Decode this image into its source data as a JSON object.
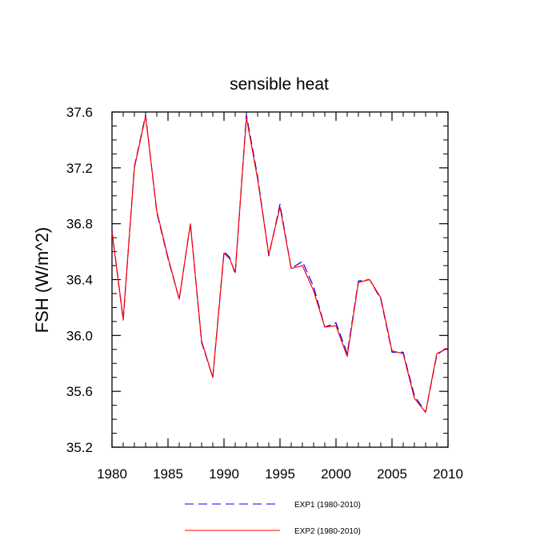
{
  "chart_data": {
    "type": "line",
    "title": "sensible heat",
    "xlabel": "",
    "ylabel": "FSH  (W/m^2)",
    "xlim": [
      1980,
      2010
    ],
    "ylim": [
      35.2,
      37.6
    ],
    "xticks": [
      1980,
      1985,
      1990,
      1995,
      2000,
      2005,
      2010
    ],
    "yticks": [
      "35.2",
      "35.6",
      "36.0",
      "36.4",
      "36.8",
      "37.2",
      "37.6"
    ],
    "legend_position": "bottom",
    "x": [
      1980,
      1981,
      1982,
      1983,
      1984,
      1985,
      1986,
      1987,
      1988,
      1989,
      1990,
      1990.5,
      1991,
      1992,
      1993,
      1994,
      1995,
      1996,
      1997,
      1998,
      1999,
      2000,
      2001,
      2002,
      2003,
      2004,
      2005,
      2006,
      2007,
      2008,
      2009,
      2010
    ],
    "series": [
      {
        "name": "EXP1 (1980-2010)",
        "color": "#0000ff",
        "dash": "dashed",
        "values": [
          36.75,
          36.11,
          37.21,
          37.58,
          36.88,
          36.55,
          36.26,
          36.8,
          35.95,
          35.7,
          36.6,
          36.56,
          36.44,
          37.58,
          37.14,
          36.57,
          36.94,
          36.48,
          36.53,
          36.35,
          36.06,
          36.09,
          35.87,
          36.39,
          36.4,
          36.26,
          35.88,
          35.88,
          35.57,
          35.45,
          35.86,
          35.92
        ]
      },
      {
        "name": "EXP2 (1980-2010)",
        "color": "#ff0000",
        "dash": "solid",
        "values": [
          36.74,
          36.12,
          37.2,
          37.57,
          36.89,
          36.56,
          36.26,
          36.8,
          35.96,
          35.7,
          36.59,
          36.55,
          36.45,
          37.56,
          37.12,
          36.58,
          36.92,
          36.48,
          36.5,
          36.32,
          36.06,
          36.07,
          35.85,
          36.38,
          36.4,
          36.27,
          35.89,
          35.87,
          35.55,
          35.45,
          35.87,
          35.91
        ]
      }
    ]
  }
}
